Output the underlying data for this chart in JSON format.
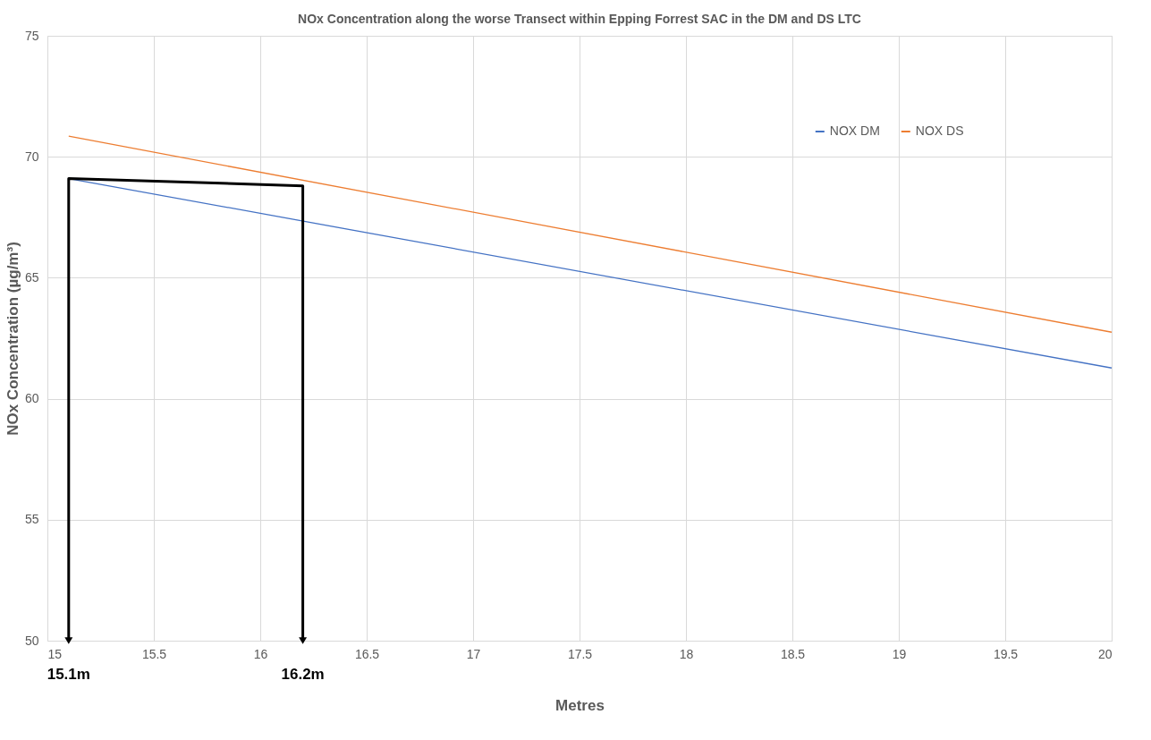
{
  "chart_data": {
    "type": "line",
    "title": "NOx Concentration along the worse Transect within Epping Forrest SAC in the DM and DS LTC",
    "xlabel": "Metres",
    "ylabel": "NOx Concentration (µg/m³)",
    "series": [
      {
        "name": "NOX DM",
        "color": "#4472c4",
        "x": [
          15.1,
          20
        ],
        "values": [
          69.1,
          61.27
        ]
      },
      {
        "name": "NOX DS",
        "color": "#ed7d31",
        "x": [
          15.1,
          20
        ],
        "values": [
          70.85,
          62.75
        ]
      },
      {
        "color": "#000000",
        "x": [
          15.1,
          15.1,
          16.2,
          16.2
        ],
        "values": [
          50,
          69.1,
          68.8,
          50
        ]
      }
    ],
    "xlim": [
      15,
      20
    ],
    "xticks": [
      15,
      15.5,
      16,
      16.5,
      17,
      17.5,
      18,
      18.5,
      19,
      19.5,
      20
    ],
    "ylim": [
      50,
      75
    ],
    "yticks": [
      50,
      55,
      60,
      65,
      70,
      75
    ],
    "annotations": [
      {
        "text": "15.1m",
        "x": 15.1,
        "y": 50
      },
      {
        "text": "16.2m",
        "x": 16.2,
        "y": 50
      }
    ],
    "grid": true,
    "legend": "top right",
    "line_style": "solid"
  }
}
